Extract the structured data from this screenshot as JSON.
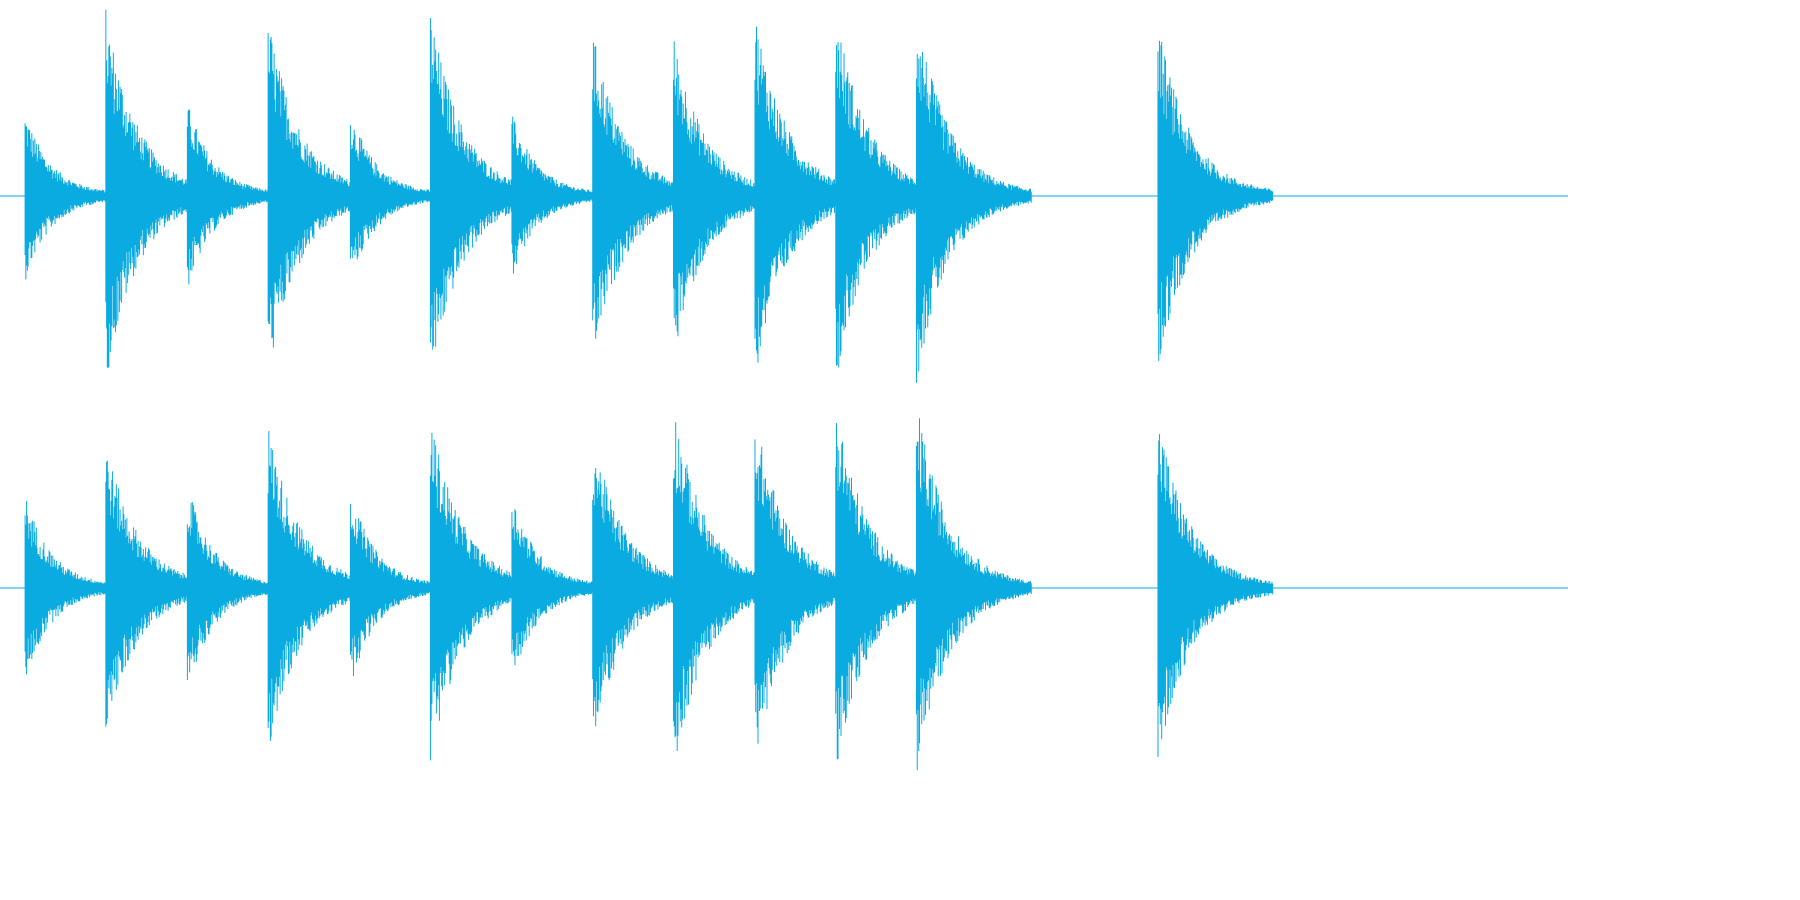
{
  "colors": {
    "waveform": "#0aabe1",
    "background": "#ffffff"
  },
  "waveform": {
    "channels": [
      {
        "name": "",
        "onsets": [
          {
            "t": 0.016,
            "peak": 0.45
          },
          {
            "t": 0.0675,
            "peak": 1.0
          },
          {
            "t": 0.1195,
            "peak": 0.5
          },
          {
            "t": 0.171,
            "peak": 0.96
          },
          {
            "t": 0.2235,
            "peak": 0.45
          },
          {
            "t": 0.2745,
            "peak": 1.0
          },
          {
            "t": 0.3265,
            "peak": 0.43
          },
          {
            "t": 0.378,
            "peak": 0.88
          },
          {
            "t": 0.4295,
            "peak": 0.86
          },
          {
            "t": 0.4815,
            "peak": 0.99
          },
          {
            "t": 0.533,
            "peak": 1.0
          },
          {
            "t": 0.5845,
            "peak": 1.0
          },
          {
            "t": 0.7385,
            "peak": 0.93
          }
        ]
      },
      {
        "name": "",
        "onsets": [
          {
            "t": 0.016,
            "peak": 0.5
          },
          {
            "t": 0.0675,
            "peak": 0.78
          },
          {
            "t": 0.1195,
            "peak": 0.55
          },
          {
            "t": 0.171,
            "peak": 0.88
          },
          {
            "t": 0.2235,
            "peak": 0.52
          },
          {
            "t": 0.2745,
            "peak": 0.93
          },
          {
            "t": 0.3265,
            "peak": 0.5
          },
          {
            "t": 0.378,
            "peak": 0.83
          },
          {
            "t": 0.4295,
            "peak": 1.0
          },
          {
            "t": 0.4815,
            "peak": 0.93
          },
          {
            "t": 0.533,
            "peak": 1.0
          },
          {
            "t": 0.5845,
            "peak": 1.0
          },
          {
            "t": 0.7385,
            "peak": 0.93
          }
        ]
      }
    ]
  }
}
